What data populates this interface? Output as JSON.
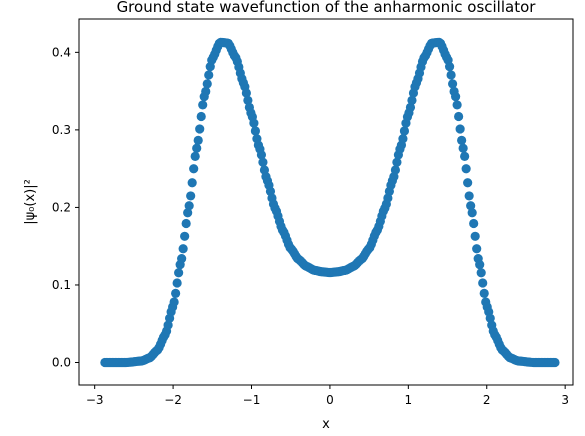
{
  "chart_data": {
    "type": "scatter",
    "title": "Ground state wavefunction of the anharmonic oscillator",
    "xlabel": "x",
    "ylabel": "|ψ₀(x)|²",
    "xlim": [
      -3.2,
      3.1
    ],
    "ylim": [
      -0.029,
      0.443
    ],
    "x_ticks": [
      "−3",
      "−2",
      "−1",
      "0",
      "1",
      "2",
      "3"
    ],
    "y_ticks": [
      "0.0",
      "0.1",
      "0.2",
      "0.3",
      "0.4"
    ],
    "x_tick_values": [
      -3,
      -2,
      -1,
      0,
      1,
      2,
      3
    ],
    "y_tick_values": [
      0.0,
      0.1,
      0.2,
      0.3,
      0.4
    ],
    "grid": false,
    "marker": "circle",
    "series": [
      {
        "color": "#1f77b4",
        "x_range": [
          -2.87,
          2.87
        ],
        "n_points": 300,
        "x": [
          -2.87,
          -2.6,
          -2.4,
          -2.3,
          -2.2,
          -2.1,
          -2.0,
          -1.9,
          -1.8,
          -1.7,
          -1.6,
          -1.5,
          -1.4,
          -1.3,
          -1.2,
          -1.1,
          -1.0,
          -0.9,
          -0.8,
          -0.7,
          -0.6,
          -0.5,
          -0.4,
          -0.3,
          -0.2,
          -0.1,
          0.0,
          0.1,
          0.2,
          0.3,
          0.4,
          0.5,
          0.6,
          0.7,
          0.8,
          0.9,
          1.0,
          1.1,
          1.2,
          1.3,
          1.4,
          1.5,
          1.6,
          1.7,
          1.8,
          1.9,
          2.0,
          2.1,
          2.2,
          2.3,
          2.4,
          2.6,
          2.87
        ],
        "y": [
          0.0,
          0.0,
          0.002,
          0.006,
          0.016,
          0.036,
          0.073,
          0.13,
          0.2,
          0.276,
          0.344,
          0.392,
          0.413,
          0.412,
          0.393,
          0.36,
          0.32,
          0.277,
          0.235,
          0.199,
          0.17,
          0.147,
          0.133,
          0.124,
          0.119,
          0.117,
          0.116,
          0.117,
          0.119,
          0.124,
          0.133,
          0.147,
          0.17,
          0.199,
          0.235,
          0.277,
          0.32,
          0.36,
          0.393,
          0.412,
          0.413,
          0.392,
          0.344,
          0.276,
          0.2,
          0.13,
          0.073,
          0.036,
          0.016,
          0.006,
          0.002,
          0.0,
          0.0
        ]
      }
    ]
  }
}
